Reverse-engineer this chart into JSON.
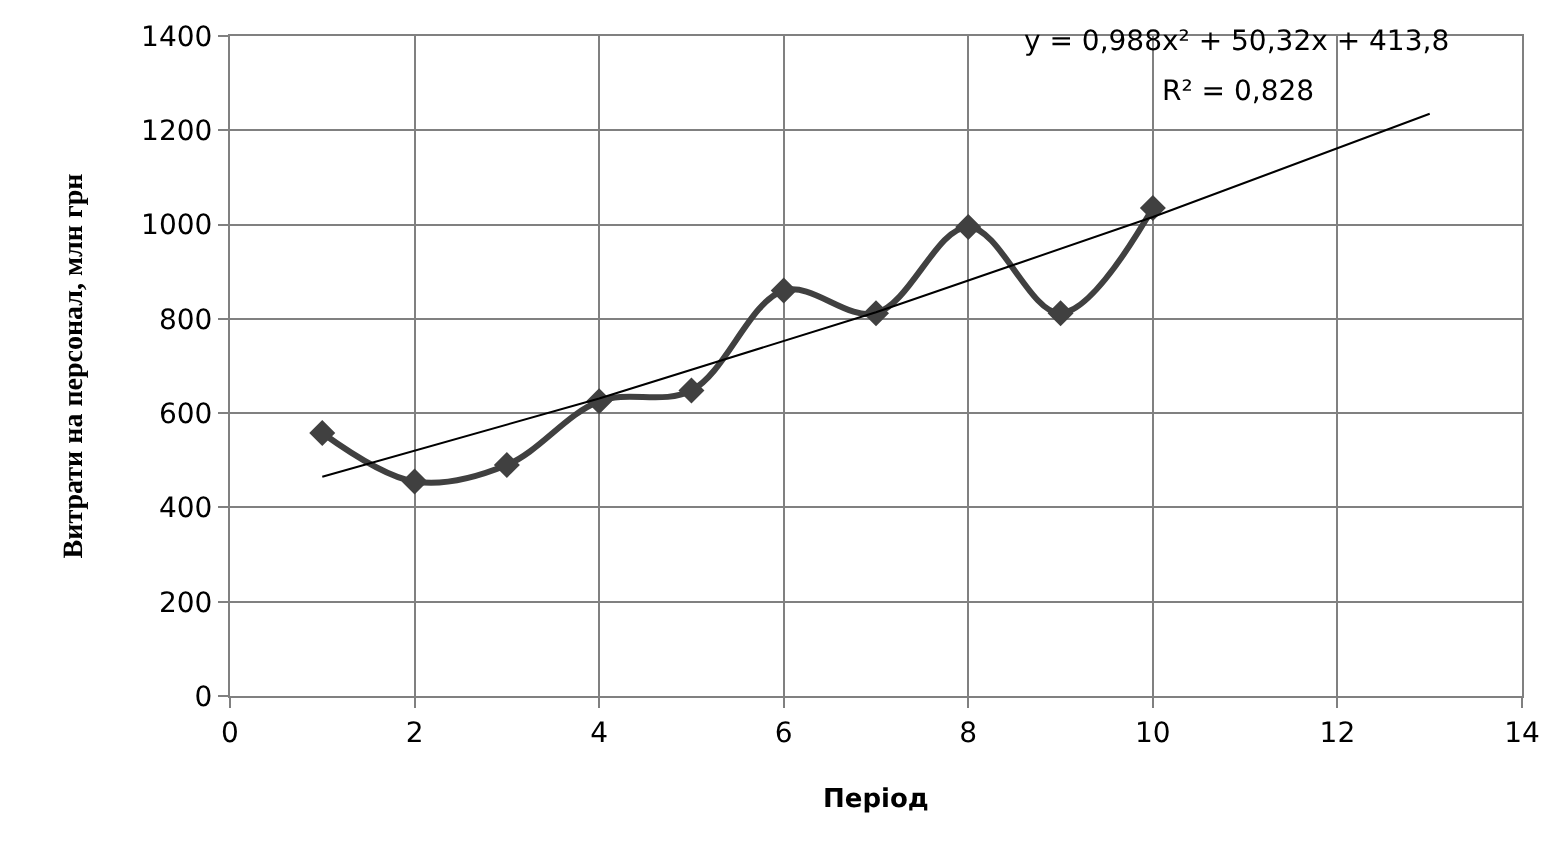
{
  "chart_data": {
    "type": "line",
    "xlabel": "Період",
    "ylabel": "Витрати на персонал, млн грн",
    "x": [
      1,
      2,
      3,
      4,
      5,
      6,
      7,
      8,
      9,
      10
    ],
    "series": [
      {
        "color": "#404040",
        "values": [
          558,
          455,
          490,
          625,
          648,
          860,
          812,
          995,
          812,
          1035
        ],
        "marker": "diamond"
      },
      {
        "type": "line",
        "color": "#000000",
        "x": [
          1,
          4,
          7,
          10,
          13
        ],
        "values": [
          465,
          631,
          814,
          1016,
          1235
        ],
        "marker": "none"
      }
    ],
    "xlim": [
      0,
      14
    ],
    "xticks": [
      0,
      2,
      4,
      6,
      8,
      10,
      12,
      14
    ],
    "ylim": [
      0,
      1400
    ],
    "yticks": [
      0,
      200,
      400,
      600,
      800,
      1000,
      1200,
      1400
    ],
    "grid": true,
    "annotations": [
      "y = 0,988x² + 50,32x + 413,8",
      "R² = 0,828"
    ]
  }
}
